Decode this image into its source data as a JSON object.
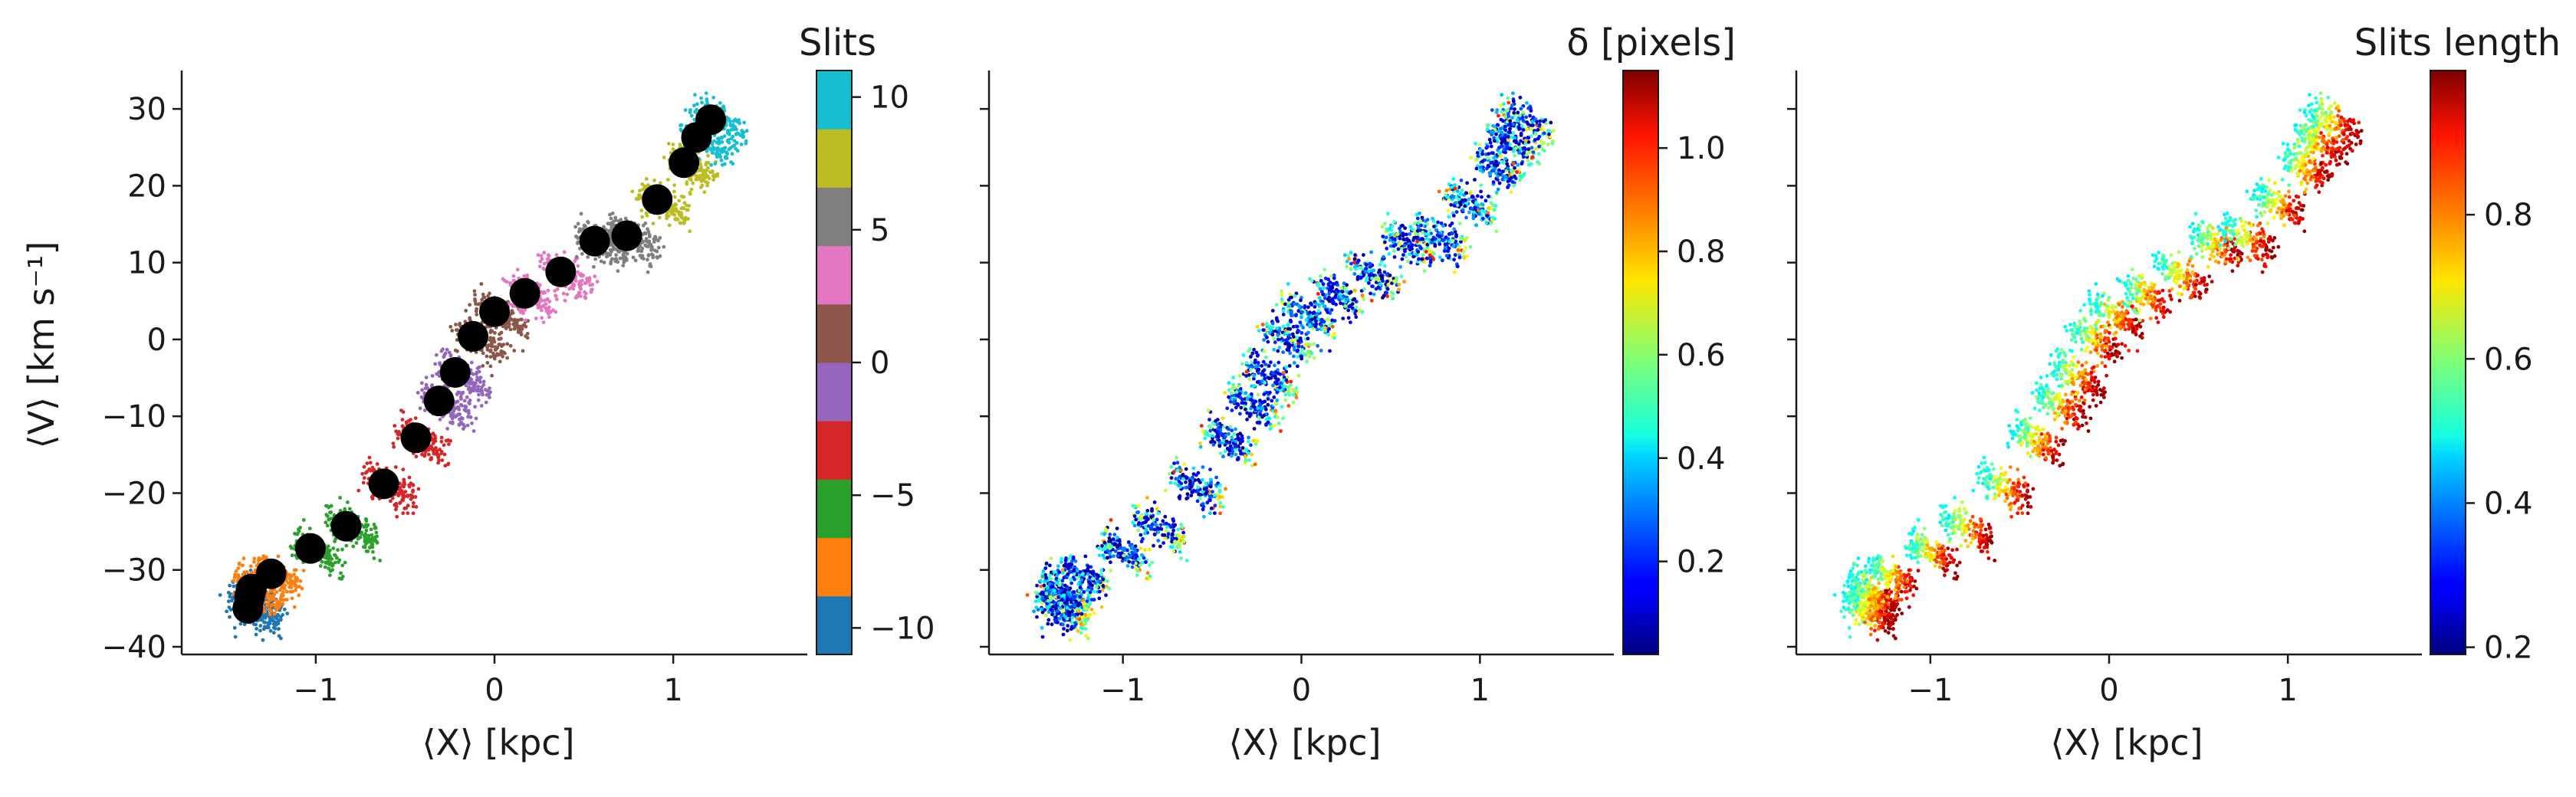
{
  "chart_data": [
    {
      "type": "scatter",
      "panel": "slits",
      "xlabel": "⟨X⟩ [kpc]",
      "ylabel": "⟨V⟩ [km s⁻¹]",
      "xlim": [
        -1.75,
        1.75
      ],
      "ylim": [
        -41,
        35
      ],
      "xticks": [
        -1,
        0,
        1
      ],
      "xtick_labels": [
        "−1",
        "0",
        "1"
      ],
      "yticks": [
        -40,
        -30,
        -20,
        -10,
        0,
        10,
        20,
        30
      ],
      "ytick_labels": [
        "−40",
        "−30",
        "−20",
        "−10",
        "0",
        "10",
        "20",
        "30"
      ],
      "grid": false,
      "colorbar": {
        "label": "Slits",
        "range": [
          -11,
          11
        ],
        "ticks": [
          -10,
          -5,
          0,
          5,
          10
        ],
        "tick_labels": [
          "−10",
          "−5",
          "0",
          "5",
          "10"
        ],
        "colors": [
          "#1f77b4",
          "#ff7f0e",
          "#2ca02c",
          "#d62728",
          "#9467bd",
          "#8c564b",
          "#e377c2",
          "#7f7f7f",
          "#bcbd22",
          "#17becf"
        ]
      },
      "slit_centers": {
        "x": [
          -1.38,
          -1.37,
          -1.36,
          -1.25,
          -1.03,
          -0.83,
          -0.62,
          -0.44,
          -0.31,
          -0.22,
          -0.12,
          0.0,
          0.17,
          0.37,
          0.56,
          0.74,
          0.91,
          1.06,
          1.13,
          1.21
        ],
        "y": [
          -35.0,
          -33.5,
          -32.5,
          -30.5,
          -27.2,
          -24.3,
          -18.8,
          -12.8,
          -8.0,
          -4.3,
          0.4,
          3.6,
          6.0,
          8.8,
          12.8,
          13.5,
          18.2,
          23.0,
          26.3,
          28.6
        ],
        "marker_color": "#000000"
      }
    },
    {
      "type": "scatter",
      "panel": "delta",
      "xlabel": "⟨X⟩ [kpc]",
      "xlim": [
        -1.75,
        1.75
      ],
      "ylim": [
        -41,
        35
      ],
      "xticks": [
        -1,
        0,
        1
      ],
      "xtick_labels": [
        "−1",
        "0",
        "1"
      ],
      "grid": false,
      "color_encoding": "δ (small in dense ridge, large at slit edges)",
      "colorbar": {
        "label": "δ [pixels]",
        "range": [
          0.02,
          1.15
        ],
        "ticks": [
          0.2,
          0.4,
          0.6,
          0.8,
          1.0
        ],
        "tick_labels": [
          "0.2",
          "0.4",
          "0.6",
          "0.8",
          "1.0"
        ],
        "colormap": "jet"
      }
    },
    {
      "type": "scatter",
      "panel": "slit-length",
      "xlabel": "⟨X⟩ [kpc]",
      "xlim": [
        -1.75,
        1.75
      ],
      "ylim": [
        -41,
        35
      ],
      "xticks": [
        -1,
        0,
        1
      ],
      "xtick_labels": [
        "−1",
        "0",
        "1"
      ],
      "grid": false,
      "color_encoding": "slit length (large at leading edge of each slit)",
      "colorbar": {
        "label": "Slits length",
        "range": [
          0.19,
          1.0
        ],
        "ticks": [
          0.2,
          0.4,
          0.6,
          0.8
        ],
        "tick_labels": [
          "0.2",
          "0.4",
          "0.6",
          "0.8"
        ],
        "colormap": "jet"
      }
    }
  ]
}
